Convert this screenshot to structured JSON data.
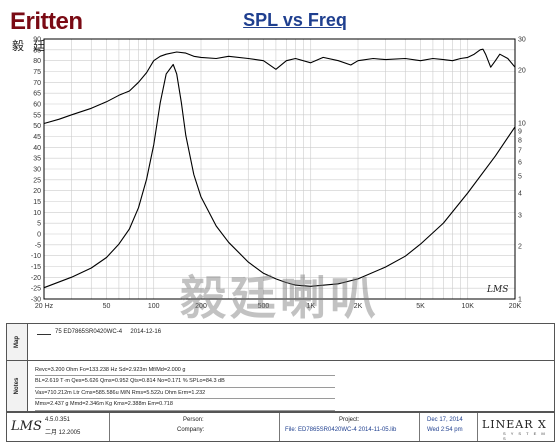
{
  "logo": {
    "latin": "Eritten",
    "cjk": "毅廷音响"
  },
  "watermark": "毅廷喇叭",
  "lms_badge": "LMS",
  "chart_data": {
    "type": "line",
    "title": "SPL vs Freq",
    "x_scale": "log",
    "xlim": [
      20,
      20000
    ],
    "x_ticks": [
      {
        "value": 20,
        "label": "20 Hz"
      },
      {
        "value": 50,
        "label": "50"
      },
      {
        "value": 100,
        "label": "100"
      },
      {
        "value": 200,
        "label": "200"
      },
      {
        "value": 500,
        "label": "500"
      },
      {
        "value": 1000,
        "label": "1K"
      },
      {
        "value": 2000,
        "label": "2K"
      },
      {
        "value": 5000,
        "label": "5K"
      },
      {
        "value": 10000,
        "label": "10K"
      },
      {
        "value": 20000,
        "label": "20K"
      }
    ],
    "y_left": {
      "ylim": [
        -30,
        90
      ],
      "ticks": [
        90,
        85,
        80,
        75,
        70,
        65,
        60,
        55,
        50,
        45,
        40,
        35,
        30,
        25,
        20,
        15,
        10,
        5,
        0,
        -5,
        -10,
        -15,
        -20,
        -25,
        -30
      ]
    },
    "y_right": {
      "scale": "log",
      "ylim": [
        1,
        30
      ],
      "ticks": [
        30,
        20,
        10,
        9,
        8,
        7,
        6,
        5,
        4,
        3,
        2,
        1
      ]
    },
    "grid": true,
    "colors": {
      "curve": "#000000",
      "grid": "#cccccc",
      "frame": "#000000"
    },
    "series": [
      {
        "id": "spl",
        "axis": "left",
        "x": [
          20,
          25,
          30,
          40,
          50,
          60,
          70,
          80,
          90,
          100,
          110,
          120,
          140,
          160,
          180,
          200,
          250,
          300,
          400,
          500,
          600,
          700,
          800,
          1000,
          1200,
          1500,
          1800,
          2000,
          2500,
          3000,
          4000,
          5000,
          6000,
          7000,
          8000,
          9000,
          10000,
          11000,
          12000,
          12500,
          13000,
          14000,
          15000,
          16000,
          18000,
          20000
        ],
        "y": [
          51,
          53,
          55,
          58,
          61,
          64,
          66,
          70,
          74.5,
          80,
          82,
          83,
          84,
          83.5,
          82,
          81.5,
          81,
          82,
          81,
          80,
          76,
          80,
          81,
          79,
          81.5,
          80,
          78,
          80,
          81,
          80.5,
          81,
          80,
          81,
          80.5,
          80,
          81,
          81.5,
          83,
          85,
          85.3,
          83,
          77,
          80,
          83,
          81,
          77
        ]
      },
      {
        "id": "impedance",
        "axis": "right",
        "x": [
          20,
          30,
          40,
          50,
          60,
          70,
          80,
          90,
          100,
          110,
          120,
          133,
          140,
          150,
          160,
          180,
          200,
          250,
          300,
          400,
          500,
          600,
          700,
          800,
          1000,
          1500,
          2000,
          3000,
          4000,
          5000,
          7000,
          10000,
          15000,
          20000
        ],
        "y": [
          1.16,
          1.33,
          1.5,
          1.72,
          2.05,
          2.5,
          3.3,
          4.8,
          7.5,
          13,
          19,
          21.5,
          19,
          13,
          8.5,
          5.1,
          3.8,
          2.6,
          2.1,
          1.62,
          1.4,
          1.3,
          1.24,
          1.2,
          1.18,
          1.22,
          1.3,
          1.52,
          1.75,
          2.05,
          2.7,
          4.0,
          6.5,
          9.5
        ]
      }
    ]
  },
  "map": {
    "entry": "75 ED7865SR0420WC-4",
    "date": "2014-12-16"
  },
  "panels": {
    "map_tab": "Map",
    "notes_tab": "Notes"
  },
  "notes": [
    "Revc=3.200 Ohm  Fo=133.238 Hz  Sd=2.923m Mf/Md=2.000 g",
    "BL=2.619 T·m  Qes=5.626  Qms=0.952  Qts=0.814  No=0.171 %  SPLo=84.3 dB",
    "Vas=710.212m Ltr  Cms=585.586u M/N  Rms=5.522u Ohm  Erm=1.232",
    "Mms=2.437 g  Mmd=2.346m Kg  Kms=2.388m  Em=0.718"
  ],
  "footer": {
    "logo": "LMS",
    "version": "4.5.0.351",
    "build": "二月 12.2005",
    "person_label": "Person:",
    "company_label": "Company:",
    "project_label": "Project:",
    "file": "File: ED7865SR0420WC-4  2014-11-05.lib",
    "date": "Dec 17, 2014",
    "time": "Wed  2:54 pm",
    "brand": "LINEAR X",
    "brand_sub": "S Y S T E M S"
  }
}
